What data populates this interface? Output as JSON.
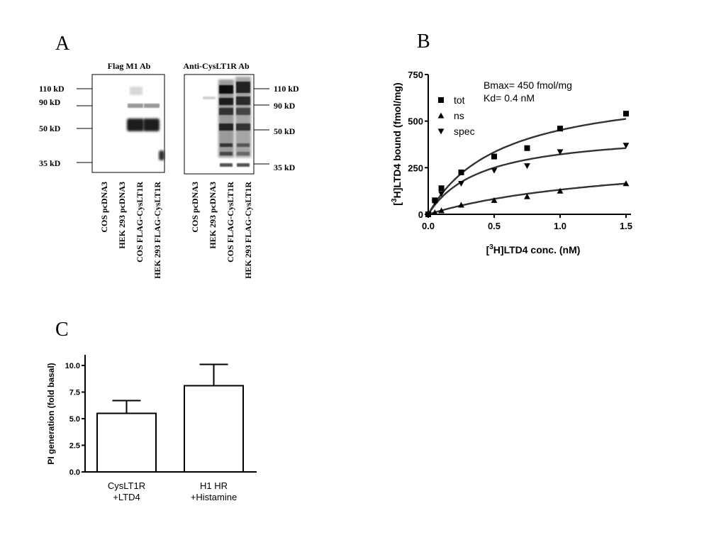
{
  "panel_labels": {
    "a": "A",
    "b": "B",
    "c": "C"
  },
  "blot": {
    "left": {
      "title": "Flag M1 Ab",
      "markers": [
        "110 kD",
        "90 kD",
        "50 kD",
        "35 kD"
      ],
      "lanes": [
        "COS  pcDNA3",
        "HEK 293  pcDNA3",
        "COS FLAG-CysLT1R",
        "HEK 293 FLAG-CysLT1R"
      ]
    },
    "right": {
      "title": "Anti-CysLT1R Ab",
      "markers": [
        "110 kD",
        "90 kD",
        "50 kD",
        "35 kD"
      ],
      "lanes": [
        "COS  pcDNA3",
        "HEK 293  pcDNA3",
        "COS FLAG-CysLT1R",
        "HEK 293 FLAG-CysLT1R"
      ]
    }
  },
  "chart_data": [
    {
      "type": "scatter",
      "panel": "B",
      "xlabel_sup": "3",
      "xlabel_pre": "[",
      "xlabel_post": "H]LTD4 conc. (nM)",
      "ylabel_sup": "3",
      "ylabel_pre": "[",
      "ylabel_post": "H]LTD4 bound (fmol/mg)",
      "xlim": [
        0,
        1.5
      ],
      "ylim": [
        0,
        750
      ],
      "xticks": [
        "0.0",
        "0.5",
        "1.0",
        "1.5"
      ],
      "yticks": [
        "0",
        "250",
        "500",
        "750"
      ],
      "annotations": [
        "Bmax= 450 fmol/mg",
        "Kd= 0.4 nM"
      ],
      "legend_position": "top-left",
      "series": [
        {
          "name": "tot",
          "marker": "square",
          "x": [
            0,
            0.05,
            0.1,
            0.25,
            0.5,
            0.75,
            1.0,
            1.5
          ],
          "y": [
            0,
            75,
            140,
            225,
            310,
            355,
            460,
            540
          ],
          "fit": {
            "bmax": 700,
            "kd": 0.55
          }
        },
        {
          "name": "ns",
          "marker": "triangle-up",
          "x": [
            0,
            0.05,
            0.1,
            0.25,
            0.5,
            0.75,
            1.0,
            1.5
          ],
          "y": [
            0,
            10,
            20,
            50,
            75,
            95,
            125,
            165
          ],
          "fit": {
            "bmax": 330,
            "kd": 1.5
          }
        },
        {
          "name": "spec",
          "marker": "triangle-down",
          "x": [
            0,
            0.05,
            0.1,
            0.25,
            0.5,
            0.75,
            1.0,
            1.5
          ],
          "y": [
            0,
            65,
            110,
            165,
            235,
            260,
            335,
            370
          ],
          "fit": {
            "bmax": 450,
            "kd": 0.4
          }
        }
      ]
    },
    {
      "type": "bar",
      "panel": "C",
      "ylabel": "PI generation (fold basal)",
      "ylim": [
        0,
        10
      ],
      "yticks": [
        "0.0",
        "2.5",
        "5.0",
        "7.5",
        "10.0"
      ],
      "categories": [
        [
          "CysLT1R",
          "+LTD4"
        ],
        [
          "H1 HR",
          "+Histamine"
        ]
      ],
      "values": [
        5.5,
        8.1
      ],
      "errors": [
        1.2,
        2.0
      ]
    }
  ]
}
